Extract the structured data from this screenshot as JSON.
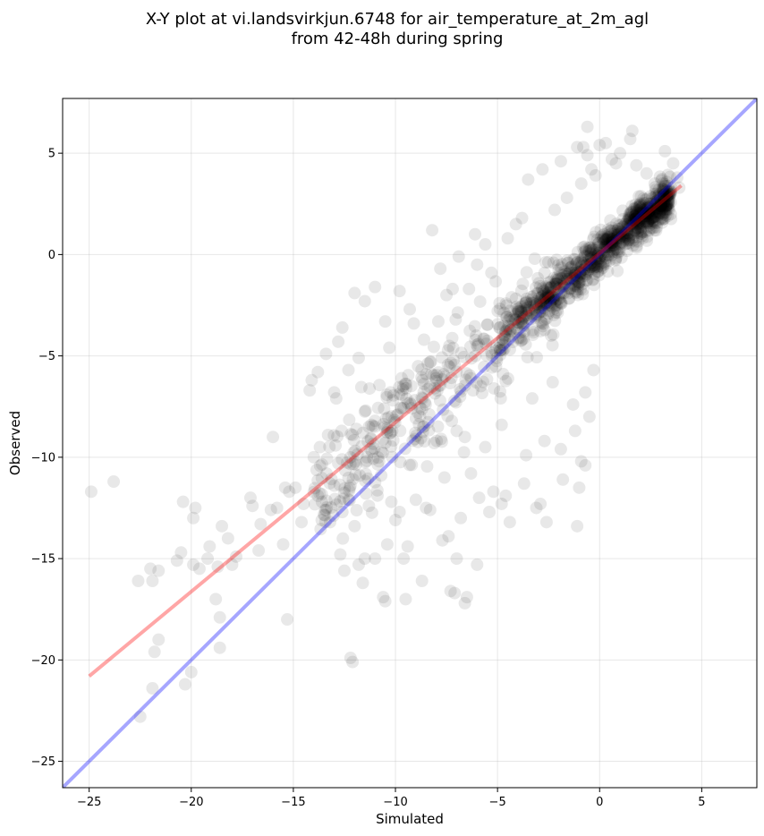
{
  "chart_data": {
    "type": "scatter",
    "title_lines": [
      "X-Y plot at vi.landsvirkjun.6748 for air_temperature_at_2m_agl",
      "from 42-48h during spring"
    ],
    "xlabel": "Simulated",
    "ylabel": "Observed",
    "xlim": [
      -26.3,
      7.7
    ],
    "ylim": [
      -26.3,
      7.7
    ],
    "xticks": [
      -25,
      -20,
      -15,
      -10,
      -5,
      0,
      5
    ],
    "yticks": [
      -25,
      -20,
      -15,
      -10,
      -5,
      0,
      5
    ],
    "xtick_labels": [
      "−25",
      "−20",
      "−15",
      "−10",
      "−5",
      "0",
      "5"
    ],
    "ytick_labels": [
      "−25",
      "−20",
      "−15",
      "−10",
      "−5",
      "0",
      "5"
    ],
    "grid": true,
    "point_color": "#000000",
    "point_alpha": 0.09,
    "fit_line": {
      "color": "#ff0000",
      "alpha": 0.35,
      "x": [
        -25.0,
        4.0
      ],
      "y": [
        -20.8,
        3.4
      ]
    },
    "identity_line": {
      "color": "#0000ff",
      "alpha": 0.35,
      "x": [
        -26.3,
        7.7
      ],
      "y": [
        -26.3,
        7.7
      ]
    },
    "points": [
      [
        -24.9,
        -11.7
      ],
      [
        -23.8,
        -11.2
      ],
      [
        -22.6,
        -16.1
      ],
      [
        -22.0,
        -15.5
      ],
      [
        -21.9,
        -16.1
      ],
      [
        -21.6,
        -15.6
      ],
      [
        -21.8,
        -19.6
      ],
      [
        -21.6,
        -19.0
      ],
      [
        -21.9,
        -21.4
      ],
      [
        -22.5,
        -22.8
      ],
      [
        -20.7,
        -15.1
      ],
      [
        -20.5,
        -14.7
      ],
      [
        -20.4,
        -12.2
      ],
      [
        -19.9,
        -13.0
      ],
      [
        -19.8,
        -12.5
      ],
      [
        -19.9,
        -15.3
      ],
      [
        -19.6,
        -15.5
      ],
      [
        -20.0,
        -20.6
      ],
      [
        -20.3,
        -21.2
      ],
      [
        -19.2,
        -15.0
      ],
      [
        -19.1,
        -14.4
      ],
      [
        -18.7,
        -15.4
      ],
      [
        -18.5,
        -13.4
      ],
      [
        -18.2,
        -14.0
      ],
      [
        -18.8,
        -17.0
      ],
      [
        -18.6,
        -17.9
      ],
      [
        -18.6,
        -19.4
      ],
      [
        -18.0,
        -15.3
      ],
      [
        -17.8,
        -14.9
      ],
      [
        -17.1,
        -12.0
      ],
      [
        -17.0,
        -12.4
      ],
      [
        -16.7,
        -14.6
      ],
      [
        -16.6,
        -13.3
      ],
      [
        -16.1,
        -12.6
      ],
      [
        -16.0,
        -9.0
      ],
      [
        -15.8,
        -12.5
      ],
      [
        -15.5,
        -14.3
      ],
      [
        -15.4,
        -11.5
      ],
      [
        -15.2,
        -11.7
      ],
      [
        -15.3,
        -18.0
      ],
      [
        -14.9,
        -11.5
      ],
      [
        -14.6,
        -13.2
      ],
      [
        -14.5,
        -12.3
      ],
      [
        -14.2,
        -6.7
      ],
      [
        -14.0,
        -10.0
      ],
      [
        -13.8,
        -11.9
      ],
      [
        -13.6,
        -12.2
      ],
      [
        -13.4,
        -12.6
      ],
      [
        -13.2,
        -13.2
      ],
      [
        -13.0,
        -11.4
      ],
      [
        -13.7,
        -9.5
      ],
      [
        -13.3,
        -8.9
      ],
      [
        -12.8,
        -10.3
      ],
      [
        -12.6,
        -12.7
      ],
      [
        -12.9,
        -7.1
      ],
      [
        -12.7,
        -14.8
      ],
      [
        -12.5,
        -15.6
      ],
      [
        -12.3,
        -12.1
      ],
      [
        -12.2,
        -11.4
      ],
      [
        -12.1,
        -20.1
      ],
      [
        -12.2,
        -19.9
      ],
      [
        -12.0,
        -13.4
      ],
      [
        -11.8,
        -15.3
      ],
      [
        -11.5,
        -15.0
      ],
      [
        -11.3,
        -12.4
      ],
      [
        -11.0,
        -15.0
      ],
      [
        -11.6,
        -16.2
      ],
      [
        -11.4,
        -10.0
      ],
      [
        -11.2,
        -9.1
      ],
      [
        -11.0,
        -8.2
      ],
      [
        -10.7,
        -10.9
      ],
      [
        -10.6,
        -16.9
      ],
      [
        -10.5,
        -17.1
      ],
      [
        -10.4,
        -14.3
      ],
      [
        -10.2,
        -12.2
      ],
      [
        -10.0,
        -13.1
      ],
      [
        -9.8,
        -12.7
      ],
      [
        -9.6,
        -15.0
      ],
      [
        -9.5,
        -17.0
      ],
      [
        -9.4,
        -14.4
      ],
      [
        -9.0,
        -12.1
      ],
      [
        -8.7,
        -16.1
      ],
      [
        -8.5,
        -12.5
      ],
      [
        -8.3,
        -12.6
      ],
      [
        -8.2,
        1.2
      ],
      [
        -7.7,
        -14.1
      ],
      [
        -7.4,
        -13.9
      ],
      [
        -7.3,
        -16.6
      ],
      [
        -7.1,
        -16.7
      ],
      [
        -7.0,
        -15.0
      ],
      [
        -6.8,
        -13.0
      ],
      [
        -6.6,
        -17.2
      ],
      [
        -6.5,
        -16.9
      ],
      [
        -6.0,
        -15.3
      ],
      [
        -6.3,
        -10.8
      ],
      [
        -5.9,
        -12.0
      ],
      [
        -5.4,
        -12.7
      ],
      [
        -5.2,
        -11.7
      ],
      [
        -4.8,
        -12.3
      ],
      [
        -4.6,
        -11.9
      ],
      [
        -4.4,
        -13.2
      ],
      [
        -3.7,
        -11.3
      ],
      [
        -3.1,
        -12.5
      ],
      [
        -2.9,
        -12.3
      ],
      [
        -2.6,
        -13.2
      ],
      [
        -1.8,
        -11.1
      ],
      [
        -1.1,
        -13.4
      ],
      [
        -1.0,
        -11.5
      ],
      [
        -0.7,
        -6.8
      ],
      [
        -0.3,
        -5.7
      ],
      [
        -14.1,
        -6.2
      ],
      [
        -13.8,
        -5.8
      ],
      [
        -13.0,
        -6.8
      ],
      [
        -12.8,
        -4.3
      ],
      [
        -12.6,
        -3.6
      ],
      [
        -12.0,
        -1.9
      ],
      [
        -11.5,
        -2.3
      ],
      [
        -11.0,
        -1.6
      ],
      [
        -10.5,
        -3.3
      ],
      [
        -9.8,
        -1.8
      ],
      [
        -9.3,
        -2.7
      ],
      [
        -9.1,
        -3.4
      ],
      [
        -8.6,
        -4.2
      ],
      [
        -8.3,
        -5.3
      ],
      [
        -7.9,
        -3.3
      ],
      [
        -7.5,
        -2.0
      ],
      [
        -7.2,
        -1.7
      ],
      [
        -6.9,
        -0.1
      ],
      [
        -6.4,
        -1.7
      ],
      [
        -6.0,
        -0.5
      ],
      [
        -5.6,
        0.5
      ],
      [
        -5.3,
        -0.9
      ],
      [
        -4.9,
        -2.4
      ],
      [
        -6.1,
        1.0
      ],
      [
        -2.8,
        4.2
      ],
      [
        -1.9,
        4.6
      ],
      [
        -1.6,
        2.8
      ],
      [
        -1.1,
        5.3
      ],
      [
        -0.9,
        3.5
      ],
      [
        -0.8,
        5.3
      ],
      [
        -0.6,
        4.9
      ],
      [
        -0.4,
        4.2
      ],
      [
        -0.2,
        3.9
      ],
      [
        0.0,
        5.4
      ],
      [
        0.3,
        5.5
      ],
      [
        0.6,
        4.7
      ],
      [
        0.8,
        4.5
      ],
      [
        1.0,
        5.0
      ],
      [
        1.5,
        5.7
      ],
      [
        1.8,
        4.4
      ],
      [
        2.3,
        4.0
      ],
      [
        2.7,
        3.5
      ],
      [
        3.2,
        5.1
      ],
      [
        3.6,
        4.5
      ],
      [
        3.8,
        3.8
      ],
      [
        3.9,
        3.3
      ],
      [
        -0.6,
        6.3
      ],
      [
        1.6,
        6.1
      ],
      [
        -3.5,
        3.7
      ],
      [
        -2.2,
        2.2
      ],
      [
        -3.8,
        1.8
      ],
      [
        -4.5,
        0.8
      ],
      [
        -4.1,
        1.5
      ],
      [
        -7.8,
        -0.7
      ],
      [
        -10.3,
        -4.6
      ],
      [
        -11.8,
        -5.1
      ],
      [
        -12.3,
        -5.7
      ],
      [
        -13.4,
        -4.9
      ],
      [
        -9.7,
        -6.1
      ],
      [
        -8.9,
        -7.8
      ],
      [
        -11.3,
        -8.5
      ],
      [
        -12.1,
        -8.9
      ],
      [
        -10.8,
        -10.2
      ],
      [
        -7.6,
        -11.0
      ],
      [
        -6.6,
        -9.0
      ],
      [
        -5.6,
        -9.5
      ],
      [
        -4.8,
        -8.4
      ],
      [
        -3.6,
        -9.9
      ],
      [
        -2.7,
        -9.2
      ],
      [
        -1.9,
        -9.6
      ],
      [
        -1.2,
        -8.7
      ],
      [
        -0.5,
        -8.0
      ],
      [
        -0.9,
        -10.2
      ],
      [
        -0.7,
        -10.4
      ],
      [
        -1.3,
        -7.4
      ],
      [
        -2.3,
        -6.3
      ],
      [
        -3.3,
        -7.1
      ],
      [
        -6.2,
        -6.7
      ],
      [
        -7.0,
        -8.7
      ],
      [
        -8.1,
        -9.3
      ]
    ]
  }
}
